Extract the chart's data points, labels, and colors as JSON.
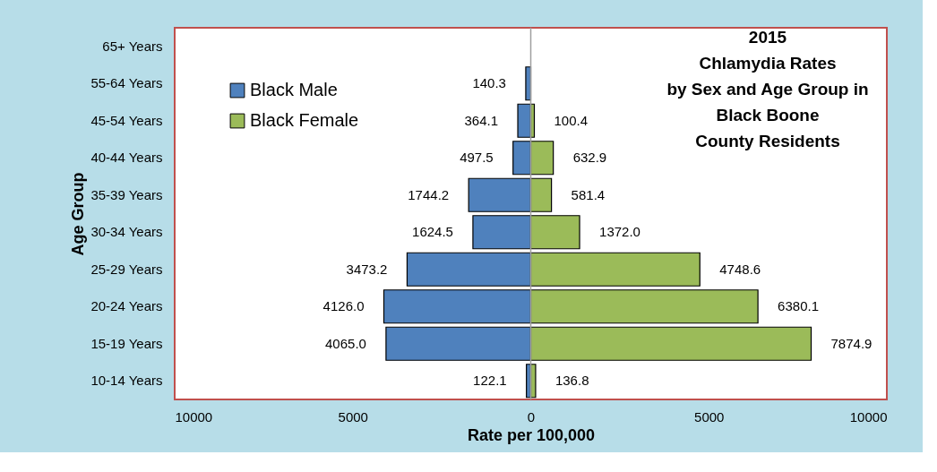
{
  "chart_data": {
    "type": "bar",
    "orientation": "horizontal",
    "title": "2015\nChlamydia Rates\nby  Sex and Age Group in\nBlack Boone\nCounty Residents",
    "xlabel": "Rate per 100,000",
    "ylabel": "Age Group",
    "categories": [
      "65+ Years",
      "55-64 Years",
      "45-54 Years",
      "40-44 Years",
      "35-39 Years",
      "30-34 Years",
      "25-29 Years",
      "20-24 Years",
      "15-19 Years",
      "10-14 Years"
    ],
    "series": [
      {
        "name": "Black Male",
        "color": "#4f81bd",
        "values": [
          null,
          140.3,
          364.1,
          497.5,
          1744.2,
          1624.5,
          3473.2,
          4126.0,
          4065.0,
          122.1
        ],
        "base": [
          null,
          -140.3,
          -364.1,
          -497.5,
          -1744.2,
          -1624.5,
          -3473.2,
          -4126.0,
          -4065.0,
          -122.1
        ],
        "value_labels": [
          null,
          "140.3",
          "364.1",
          "497.5",
          "1744.2",
          "1624.5",
          "3473.2",
          "4126.0",
          "4065.0",
          "122.1"
        ]
      },
      {
        "name": "Black Female",
        "color": "#9bbb59",
        "values": [
          null,
          null,
          100.4,
          632.9,
          581.4,
          1372.0,
          4748.6,
          6380.1,
          7874.9,
          136.8
        ],
        "value_labels": [
          null,
          null,
          "100.4",
          "632.9",
          "581.4",
          "1372.0",
          "4748.6",
          "6380.1",
          "7874.9",
          "136.8"
        ]
      }
    ],
    "xlim": [
      -10000,
      10000
    ],
    "xticks": [
      {
        "value": -10000,
        "label": "10000"
      },
      {
        "value": -5000,
        "label": "5000"
      },
      0,
      5000,
      10000
    ],
    "ref_lines": [
      {
        "axis": "x",
        "value": 0,
        "color": "#a0a0a0"
      }
    ],
    "grid": false,
    "legend": "top left"
  }
}
